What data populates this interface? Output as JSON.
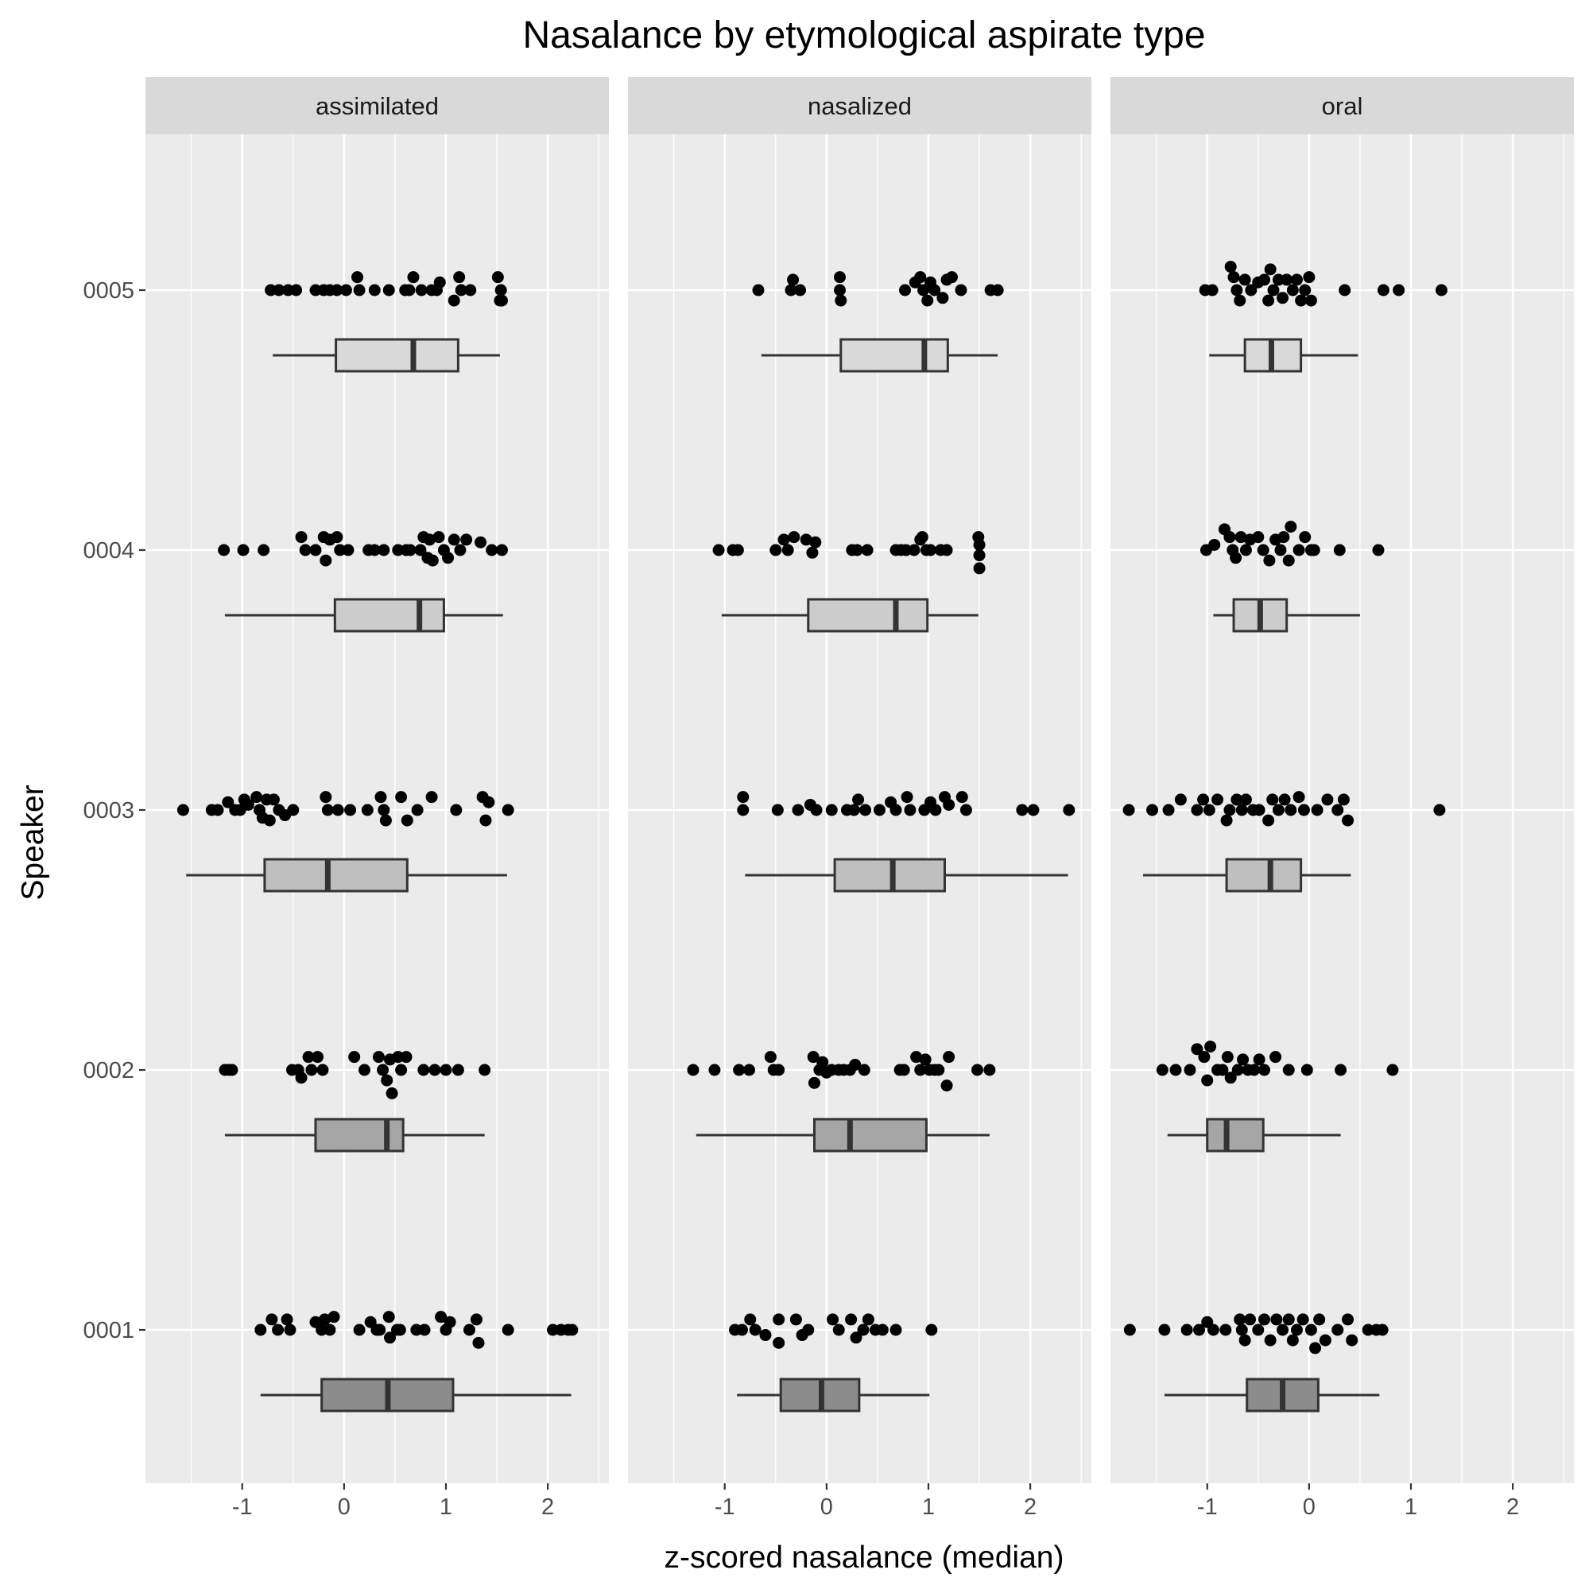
{
  "chart_data": {
    "type": "boxplot-with-jittered-points",
    "title": "Nasalance by etymological aspirate type",
    "xlabel": "z-scored nasalance (median)",
    "ylabel": "Speaker",
    "xlim": [
      -1.95,
      2.6
    ],
    "x_ticks": [
      "-1",
      "0",
      "1",
      "2"
    ],
    "x_tick_values": [
      -1,
      0,
      1,
      2
    ],
    "speakers": [
      "0001",
      "0002",
      "0003",
      "0004",
      "0005"
    ],
    "panels": [
      "assimilated",
      "nasalized",
      "oral"
    ],
    "box_fill": {
      "0001": "#8c8c8c",
      "0002": "#a6a6a6",
      "0003": "#bfbfbf",
      "0004": "#cccccc",
      "0005": "#d9d9d9"
    },
    "boxes": [
      {
        "panel": "assimilated",
        "speaker": "0005",
        "min": -0.7,
        "q1": -0.08,
        "median": 0.68,
        "q3": 1.12,
        "max": 1.53
      },
      {
        "panel": "assimilated",
        "speaker": "0004",
        "min": -1.17,
        "q1": -0.09,
        "median": 0.74,
        "q3": 0.98,
        "max": 1.56
      },
      {
        "panel": "assimilated",
        "speaker": "0003",
        "min": -1.55,
        "q1": -0.78,
        "median": -0.16,
        "q3": 0.62,
        "max": 1.6
      },
      {
        "panel": "assimilated",
        "speaker": "0002",
        "min": -1.17,
        "q1": -0.28,
        "median": 0.42,
        "q3": 0.58,
        "max": 1.38
      },
      {
        "panel": "assimilated",
        "speaker": "0001",
        "min": -0.82,
        "q1": -0.22,
        "median": 0.43,
        "q3": 1.07,
        "max": 2.23
      },
      {
        "panel": "nasalized",
        "speaker": "0005",
        "min": -0.64,
        "q1": 0.14,
        "median": 0.96,
        "q3": 1.19,
        "max": 1.68
      },
      {
        "panel": "nasalized",
        "speaker": "0004",
        "min": -1.03,
        "q1": -0.18,
        "median": 0.68,
        "q3": 0.99,
        "max": 1.49
      },
      {
        "panel": "nasalized",
        "speaker": "0003",
        "min": -0.8,
        "q1": 0.08,
        "median": 0.65,
        "q3": 1.16,
        "max": 2.37
      },
      {
        "panel": "nasalized",
        "speaker": "0002",
        "min": -1.28,
        "q1": -0.12,
        "median": 0.23,
        "q3": 0.98,
        "max": 1.6
      },
      {
        "panel": "nasalized",
        "speaker": "0001",
        "min": -0.88,
        "q1": -0.45,
        "median": -0.05,
        "q3": 0.32,
        "max": 1.01
      },
      {
        "panel": "oral",
        "speaker": "0005",
        "min": -0.98,
        "q1": -0.63,
        "median": -0.37,
        "q3": -0.08,
        "max": 0.48
      },
      {
        "panel": "oral",
        "speaker": "0004",
        "min": -0.94,
        "q1": -0.74,
        "median": -0.48,
        "q3": -0.22,
        "max": 0.5
      },
      {
        "panel": "oral",
        "speaker": "0003",
        "min": -1.63,
        "q1": -0.81,
        "median": -0.38,
        "q3": -0.08,
        "max": 0.41
      },
      {
        "panel": "oral",
        "speaker": "0002",
        "min": -1.39,
        "q1": -1.0,
        "median": -0.81,
        "q3": -0.45,
        "max": 0.31
      },
      {
        "panel": "oral",
        "speaker": "0001",
        "min": -1.42,
        "q1": -0.61,
        "median": -0.26,
        "q3": 0.09,
        "max": 0.69
      }
    ],
    "points": [
      {
        "panel": "assimilated",
        "speaker": "0005",
        "x": [
          -0.72,
          -0.64,
          -0.55,
          -0.47,
          -0.28,
          -0.2,
          -0.14,
          -0.07,
          0.02,
          0.13,
          0.15,
          0.3,
          0.44,
          0.6,
          0.64,
          0.68,
          0.76,
          0.86,
          0.91,
          0.94,
          1.08,
          1.13,
          1.15,
          1.24,
          1.51,
          1.53,
          1.54,
          1.55
        ],
        "dy": [
          0,
          0,
          0,
          0,
          0,
          0,
          0,
          0,
          0,
          0.05,
          0,
          0,
          0,
          0,
          0,
          0.05,
          0,
          0,
          0,
          0.03,
          -0.04,
          0.05,
          0,
          0,
          0.05,
          -0.04,
          0,
          -0.04
        ]
      },
      {
        "panel": "assimilated",
        "speaker": "0004",
        "x": [
          -1.18,
          -0.99,
          -0.79,
          -0.42,
          -0.38,
          -0.28,
          -0.2,
          -0.18,
          -0.14,
          -0.07,
          -0.04,
          0.04,
          0.24,
          0.3,
          0.39,
          0.53,
          0.61,
          0.65,
          0.75,
          0.78,
          0.82,
          0.84,
          0.87,
          0.93,
          0.98,
          1.02,
          1.08,
          1.14,
          1.2,
          1.34,
          1.45,
          1.55
        ],
        "dy": [
          0,
          0,
          0,
          0.05,
          0,
          0,
          0.05,
          -0.04,
          0.04,
          0.05,
          0,
          0,
          0,
          0,
          0,
          0,
          0,
          0,
          0,
          0.05,
          -0.03,
          0.04,
          -0.04,
          0.05,
          0,
          -0.03,
          0.04,
          0,
          0.04,
          0.03,
          0,
          0
        ]
      },
      {
        "panel": "assimilated",
        "speaker": "0003",
        "x": [
          -1.58,
          -1.3,
          -1.24,
          -1.14,
          -1.07,
          -1.02,
          -0.98,
          -0.94,
          -0.86,
          -0.83,
          -0.8,
          -0.76,
          -0.73,
          -0.69,
          -0.64,
          -0.58,
          -0.5,
          -0.18,
          -0.16,
          -0.06,
          0.06,
          0.23,
          0.36,
          0.39,
          0.41,
          0.56,
          0.62,
          0.72,
          0.86,
          1.1,
          1.36,
          1.39,
          1.42,
          1.61
        ],
        "dy": [
          0,
          0,
          0,
          0.03,
          0,
          0,
          0.04,
          0.02,
          0.05,
          0,
          -0.03,
          0.04,
          -0.04,
          0.04,
          0,
          -0.02,
          0,
          0.05,
          0,
          0,
          0,
          0,
          0.05,
          0,
          -0.04,
          0.05,
          -0.04,
          0,
          0.05,
          0,
          0.05,
          -0.04,
          0.03,
          0
        ]
      },
      {
        "panel": "assimilated",
        "speaker": "0002",
        "x": [
          -1.17,
          -1.13,
          -1.1,
          -0.51,
          -0.45,
          -0.42,
          -0.35,
          -0.32,
          -0.26,
          -0.21,
          0.1,
          0.2,
          0.34,
          0.38,
          0.42,
          0.45,
          0.47,
          0.53,
          0.56,
          0.61,
          0.78,
          0.89,
          1.0,
          1.12,
          1.38
        ],
        "dy": [
          0,
          0,
          0,
          0,
          0,
          -0.03,
          0.05,
          0,
          0.05,
          0,
          0.05,
          0,
          0.05,
          0,
          -0.04,
          0.04,
          -0.09,
          0.05,
          0,
          0.05,
          0,
          0,
          0,
          0,
          0
        ]
      },
      {
        "panel": "assimilated",
        "speaker": "0001",
        "x": [
          -0.82,
          -0.71,
          -0.65,
          -0.56,
          -0.53,
          -0.28,
          -0.22,
          -0.19,
          -0.14,
          -0.1,
          0.15,
          0.26,
          0.32,
          0.35,
          0.44,
          0.45,
          0.52,
          0.55,
          0.71,
          0.79,
          0.95,
          1.0,
          1.04,
          1.23,
          1.3,
          1.32,
          1.61,
          2.05,
          2.13,
          2.2,
          2.24
        ],
        "dy": [
          0,
          0.04,
          0,
          0.04,
          0,
          0.03,
          0,
          0.04,
          0,
          0.05,
          0,
          0.03,
          0,
          0,
          0.05,
          -0.03,
          0,
          0,
          0,
          0,
          0.05,
          0,
          0.03,
          0,
          0.04,
          -0.05,
          0,
          0,
          0,
          0,
          0
        ]
      },
      {
        "panel": "nasalized",
        "speaker": "0005",
        "x": [
          -0.67,
          -0.33,
          -0.35,
          -0.26,
          0.13,
          0.13,
          0.14,
          0.77,
          0.87,
          0.92,
          0.95,
          0.99,
          1.02,
          1.06,
          1.14,
          1.18,
          1.23,
          1.32,
          1.61,
          1.68
        ],
        "dy": [
          0,
          0.04,
          0,
          0,
          0.05,
          0,
          -0.04,
          0,
          0.03,
          0.05,
          0,
          -0.04,
          0.03,
          0,
          -0.03,
          0.04,
          0.05,
          0,
          0,
          0
        ]
      },
      {
        "panel": "nasalized",
        "speaker": "0004",
        "x": [
          -1.06,
          -0.92,
          -0.87,
          -0.5,
          -0.42,
          -0.38,
          -0.32,
          -0.2,
          -0.14,
          -0.11,
          0.25,
          0.3,
          0.4,
          0.68,
          0.73,
          0.78,
          0.86,
          0.92,
          0.94,
          0.98,
          1.02,
          1.12,
          1.18,
          1.49,
          1.5,
          1.5,
          1.5
        ],
        "dy": [
          0,
          0,
          0,
          0,
          0.04,
          0,
          0.05,
          0.04,
          -0.01,
          0.03,
          0,
          0,
          0,
          0,
          0,
          0,
          0,
          0.04,
          0.05,
          0,
          0,
          0,
          0,
          0.05,
          0.02,
          -0.02,
          -0.07
        ]
      },
      {
        "panel": "nasalized",
        "speaker": "0003",
        "x": [
          -0.82,
          -0.82,
          -0.48,
          -0.28,
          -0.16,
          -0.1,
          0.05,
          0.2,
          0.27,
          0.31,
          0.38,
          0.52,
          0.63,
          0.68,
          0.79,
          0.82,
          0.96,
          1.02,
          1.07,
          1.16,
          1.2,
          1.33,
          1.37,
          1.92,
          2.03,
          2.38
        ],
        "dy": [
          0.05,
          0,
          0,
          0,
          0.02,
          0,
          0,
          0,
          0,
          0.04,
          0,
          0,
          0.03,
          0,
          0.05,
          0,
          0,
          0.03,
          0,
          0.05,
          0.02,
          0.05,
          0,
          0,
          0,
          0
        ]
      },
      {
        "panel": "nasalized",
        "speaker": "0002",
        "x": [
          -1.31,
          -1.1,
          -0.86,
          -0.76,
          -0.55,
          -0.52,
          -0.47,
          -0.13,
          -0.12,
          -0.07,
          -0.04,
          0,
          0.05,
          0.12,
          0.17,
          0.23,
          0.28,
          0.37,
          0.72,
          0.76,
          0.88,
          0.92,
          0.97,
          1.01,
          1.06,
          1.1,
          1.18,
          1.2,
          1.48,
          1.6
        ],
        "dy": [
          0,
          0,
          0,
          0,
          0.05,
          0,
          0,
          0.05,
          -0.05,
          0,
          0.03,
          -0.01,
          0,
          0,
          0,
          0,
          0.02,
          0,
          0,
          0,
          0.05,
          0,
          0.04,
          0,
          0,
          0,
          -0.06,
          0.05,
          0,
          0
        ]
      },
      {
        "panel": "nasalized",
        "speaker": "0001",
        "x": [
          -0.9,
          -0.83,
          -0.75,
          -0.7,
          -0.6,
          -0.47,
          -0.47,
          -0.3,
          -0.24,
          -0.18,
          0.06,
          0.12,
          0.24,
          0.29,
          0.36,
          0.41,
          0.48,
          0.55,
          0.68,
          1.03
        ],
        "dy": [
          0,
          0,
          0.04,
          0,
          -0.02,
          0.04,
          -0.05,
          0.04,
          -0.02,
          0,
          0.04,
          0,
          0.04,
          -0.03,
          0,
          0.04,
          0,
          0,
          0,
          0
        ]
      },
      {
        "panel": "oral",
        "speaker": "0005",
        "x": [
          -1.02,
          -0.95,
          -0.77,
          -0.74,
          -0.71,
          -0.68,
          -0.63,
          -0.57,
          -0.5,
          -0.44,
          -0.4,
          -0.38,
          -0.35,
          -0.3,
          -0.26,
          -0.22,
          -0.16,
          -0.12,
          -0.08,
          -0.04,
          0.0,
          0.02,
          0.35,
          0.73,
          0.88,
          1.3
        ],
        "dy": [
          0,
          0,
          0.09,
          0.05,
          0,
          -0.04,
          0.04,
          0,
          0.03,
          0.04,
          -0.04,
          0.08,
          0,
          0.04,
          -0.03,
          0.04,
          0,
          0.04,
          -0.04,
          0,
          0.05,
          -0.04,
          0,
          0,
          0,
          0
        ]
      },
      {
        "panel": "oral",
        "speaker": "0004",
        "x": [
          -1.01,
          -0.93,
          -0.83,
          -0.78,
          -0.75,
          -0.72,
          -0.67,
          -0.62,
          -0.58,
          -0.5,
          -0.45,
          -0.39,
          -0.33,
          -0.28,
          -0.25,
          -0.2,
          -0.18,
          -0.1,
          -0.04,
          0.02,
          0.05,
          0.3,
          0.68
        ],
        "dy": [
          0,
          0.02,
          0.08,
          0.05,
          0,
          -0.03,
          0.05,
          0,
          0.04,
          0.05,
          0,
          -0.04,
          0.04,
          0,
          0.05,
          -0.04,
          0.09,
          0,
          0.05,
          0,
          0,
          0,
          0
        ]
      },
      {
        "panel": "oral",
        "speaker": "0003",
        "x": [
          -1.77,
          -1.54,
          -1.38,
          -1.26,
          -1.1,
          -1.04,
          -0.98,
          -0.9,
          -0.81,
          -0.78,
          -0.71,
          -0.66,
          -0.62,
          -0.55,
          -0.49,
          -0.4,
          -0.36,
          -0.3,
          -0.24,
          -0.18,
          -0.1,
          -0.05,
          0.08,
          0.18,
          0.28,
          0.34,
          0.38,
          1.28
        ],
        "dy": [
          0,
          0,
          0,
          0.04,
          0,
          0.04,
          0,
          0.04,
          -0.04,
          0,
          0.04,
          0,
          0.04,
          0,
          0,
          -0.04,
          0.04,
          0,
          0.04,
          0,
          0.05,
          0,
          0,
          0.04,
          0,
          0.04,
          -0.04,
          0
        ]
      },
      {
        "panel": "oral",
        "speaker": "0002",
        "x": [
          -1.44,
          -1.31,
          -1.17,
          -1.1,
          -1.03,
          -1.0,
          -0.97,
          -0.9,
          -0.85,
          -0.8,
          -0.77,
          -0.7,
          -0.65,
          -0.6,
          -0.54,
          -0.49,
          -0.44,
          -0.33,
          -0.2,
          -0.02,
          0.31,
          0.82
        ],
        "dy": [
          0,
          0,
          0,
          0.08,
          0.05,
          -0.04,
          0.09,
          0,
          0,
          0.05,
          -0.03,
          0,
          0.04,
          0,
          0,
          0.04,
          0,
          0.05,
          0,
          0,
          0,
          0
        ]
      },
      {
        "panel": "oral",
        "speaker": "0001",
        "x": [
          -1.76,
          -1.42,
          -1.2,
          -1.08,
          -1.0,
          -0.94,
          -0.82,
          -0.68,
          -0.66,
          -0.63,
          -0.58,
          -0.5,
          -0.44,
          -0.38,
          -0.32,
          -0.26,
          -0.2,
          -0.16,
          -0.12,
          -0.06,
          0.02,
          0.06,
          0.1,
          0.16,
          0.28,
          0.38,
          0.42,
          0.58,
          0.66,
          0.72
        ],
        "dy": [
          0,
          0,
          0,
          0,
          0.03,
          0,
          0,
          0.04,
          0,
          -0.04,
          0.04,
          0,
          0.04,
          -0.04,
          0.04,
          0,
          0.04,
          -0.04,
          0,
          0.04,
          0,
          -0.07,
          0.04,
          -0.04,
          0,
          0.04,
          -0.04,
          0,
          0,
          0
        ]
      }
    ]
  }
}
